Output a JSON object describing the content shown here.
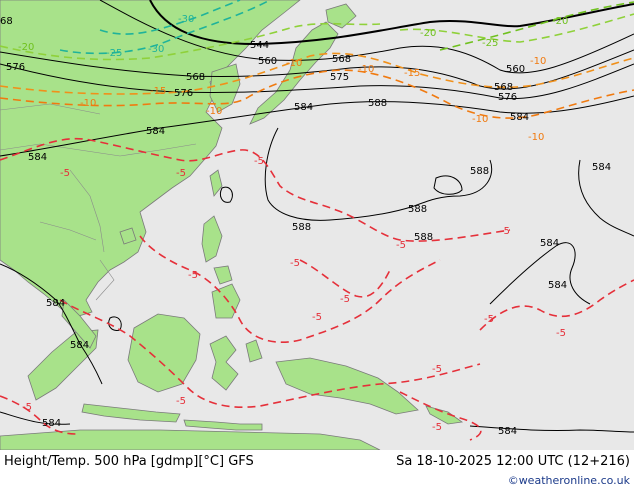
{
  "footer": {
    "title": "Height/Temp. 500 hPa [gdmp][°C] GFS",
    "valid_time": "Sa 18-10-2025 12:00 UTC (12+216)",
    "credit": "©weatheronline.co.uk"
  },
  "colors": {
    "ocean": "#e8e8e8",
    "land": "#a8e28a",
    "height_contour": "#000000",
    "temp_minus_30": "#1fb39a",
    "temp_minus_25": "#6fc11e",
    "temp_minus_20": "#8fd13a",
    "temp_minus_15": "#f0901a",
    "temp_minus_10": "#f07a10",
    "temp_minus_5": "#e5303a"
  },
  "height_labels": [
    {
      "text": "68"
    },
    {
      "text": "544"
    },
    {
      "text": "560"
    },
    {
      "text": "568"
    },
    {
      "text": "576"
    },
    {
      "text": "568"
    },
    {
      "text": "576"
    },
    {
      "text": "575"
    },
    {
      "text": "584"
    },
    {
      "text": "588"
    },
    {
      "text": "584"
    },
    {
      "text": "584"
    },
    {
      "text": "560"
    },
    {
      "text": "568"
    },
    {
      "text": "576"
    },
    {
      "text": "584"
    },
    {
      "text": "588"
    },
    {
      "text": "584"
    },
    {
      "text": "588"
    },
    {
      "text": "588"
    },
    {
      "text": "588"
    },
    {
      "text": "584"
    },
    {
      "text": "584"
    },
    {
      "text": "584"
    },
    {
      "text": "584"
    },
    {
      "text": "584"
    },
    {
      "text": "584"
    }
  ],
  "temp_labels": [
    {
      "text": "-30"
    },
    {
      "text": "-30"
    },
    {
      "text": "-25"
    },
    {
      "text": "-25"
    },
    {
      "text": "-20"
    },
    {
      "text": "-20"
    },
    {
      "text": "-20"
    },
    {
      "text": "-15"
    },
    {
      "text": "-15"
    },
    {
      "text": "-10"
    },
    {
      "text": "-10"
    },
    {
      "text": "-10"
    },
    {
      "text": "-10"
    },
    {
      "text": "-10"
    },
    {
      "text": "-10"
    },
    {
      "text": "-10"
    },
    {
      "text": "-5"
    },
    {
      "text": "-5"
    },
    {
      "text": "-5"
    },
    {
      "text": "-5"
    },
    {
      "text": "-5"
    },
    {
      "text": "-5"
    },
    {
      "text": "-5"
    },
    {
      "text": "-5"
    },
    {
      "text": "-5"
    },
    {
      "text": "-5"
    },
    {
      "text": "-5"
    },
    {
      "text": "-5"
    },
    {
      "text": "-5"
    },
    {
      "text": "-5"
    },
    {
      "text": "-5"
    }
  ]
}
